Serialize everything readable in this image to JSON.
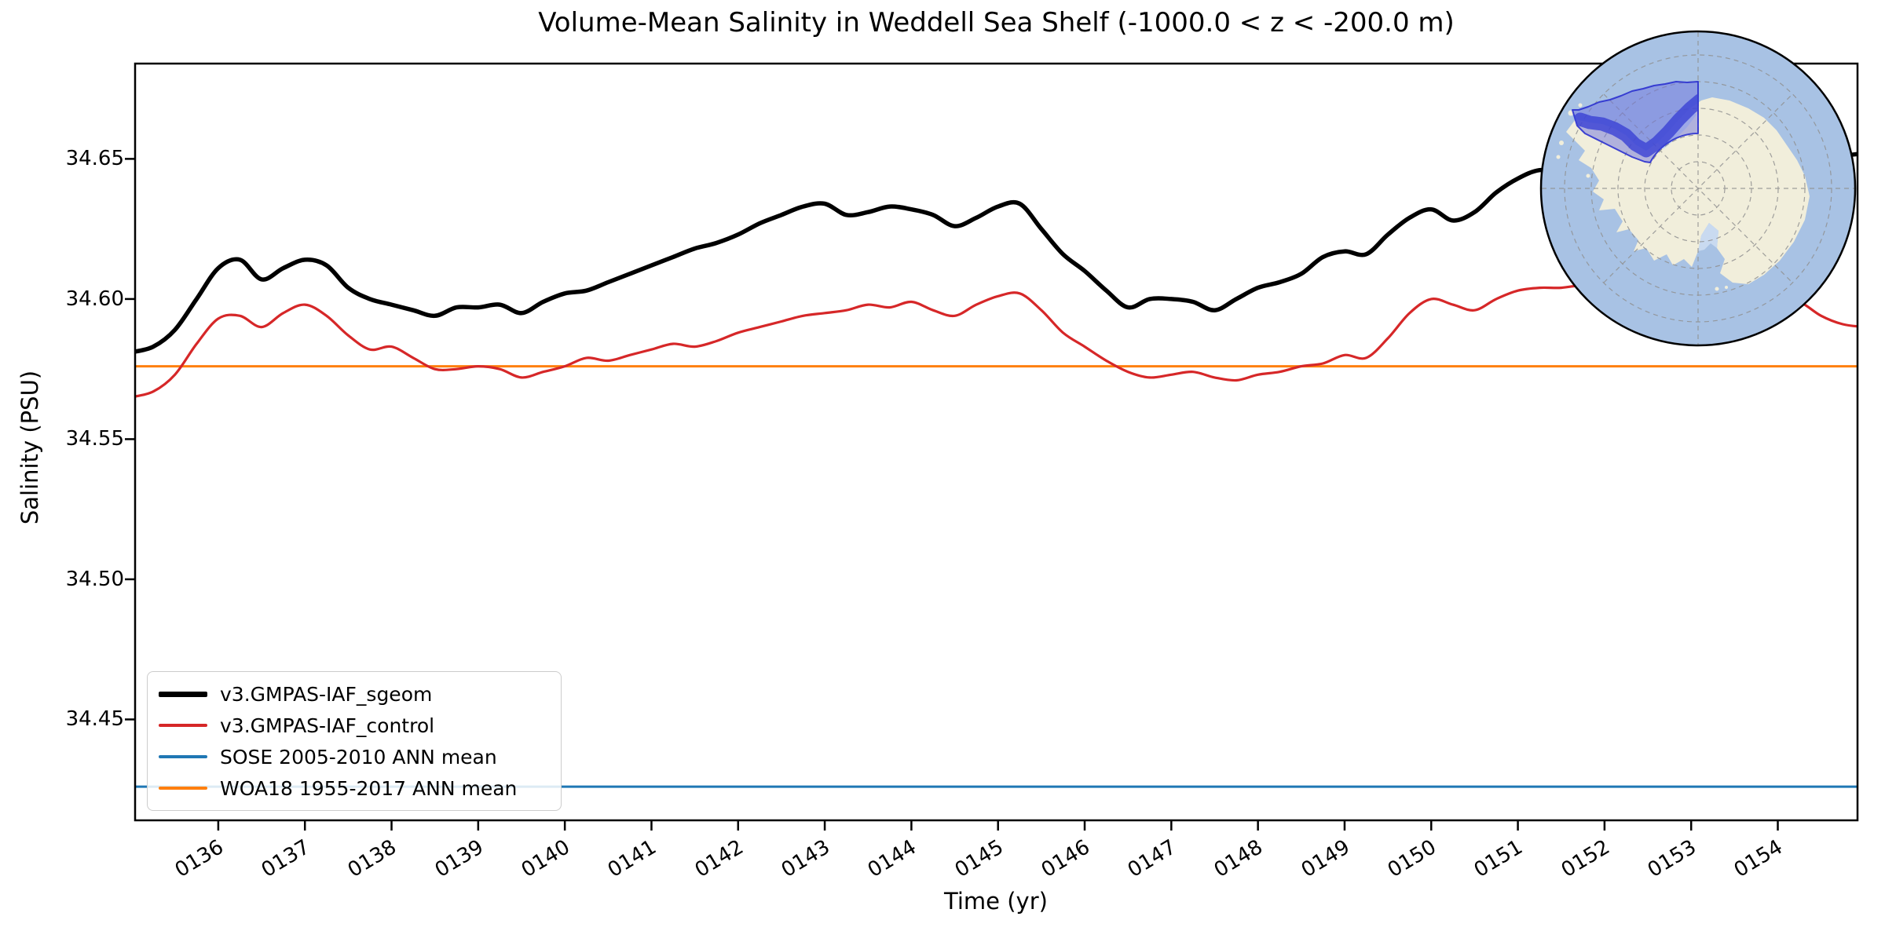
{
  "page": {
    "background": "#ffffff"
  },
  "chart_data": {
    "type": "line",
    "title": "Volume-Mean Salinity in Weddell Sea Shelf (-1000.0 < z < -200.0 m)",
    "xlabel": "Time (yr)",
    "ylabel": "Salinity (PSU)",
    "xlim": [
      135.04,
      154.92
    ],
    "ylim": [
      34.414,
      34.684
    ],
    "grid": false,
    "legend_position": "lower left",
    "xticks": [
      {
        "value": 136,
        "label": "0136"
      },
      {
        "value": 137,
        "label": "0137"
      },
      {
        "value": 138,
        "label": "0138"
      },
      {
        "value": 139,
        "label": "0139"
      },
      {
        "value": 140,
        "label": "0140"
      },
      {
        "value": 141,
        "label": "0141"
      },
      {
        "value": 142,
        "label": "0142"
      },
      {
        "value": 143,
        "label": "0143"
      },
      {
        "value": 144,
        "label": "0144"
      },
      {
        "value": 145,
        "label": "0145"
      },
      {
        "value": 146,
        "label": "0146"
      },
      {
        "value": 147,
        "label": "0147"
      },
      {
        "value": 148,
        "label": "0148"
      },
      {
        "value": 149,
        "label": "0149"
      },
      {
        "value": 150,
        "label": "0150"
      },
      {
        "value": 151,
        "label": "0151"
      },
      {
        "value": 152,
        "label": "0152"
      },
      {
        "value": 153,
        "label": "0153"
      },
      {
        "value": 154,
        "label": "0154"
      }
    ],
    "yticks": [
      {
        "value": 34.45,
        "label": "34.45"
      },
      {
        "value": 34.5,
        "label": "34.50"
      },
      {
        "value": 34.55,
        "label": "34.55"
      },
      {
        "value": 34.6,
        "label": "34.60"
      },
      {
        "value": 34.65,
        "label": "34.65"
      }
    ],
    "x_start": 135.0,
    "x_step": 0.25,
    "series": [
      {
        "name": "v3.GMPAS-IAF_sgeom",
        "color": "#000000",
        "line_width": 5.5,
        "values": [
          34.581,
          34.583,
          34.589,
          34.6,
          34.611,
          34.614,
          34.607,
          34.611,
          34.614,
          34.612,
          34.604,
          34.6,
          34.598,
          34.596,
          34.594,
          34.597,
          34.597,
          34.598,
          34.595,
          34.599,
          34.602,
          34.603,
          34.606,
          34.609,
          34.612,
          34.615,
          34.618,
          34.62,
          34.623,
          34.627,
          34.63,
          34.633,
          34.634,
          34.63,
          34.631,
          34.633,
          34.632,
          34.63,
          34.626,
          34.629,
          34.633,
          34.634,
          34.625,
          34.616,
          34.61,
          34.603,
          34.597,
          34.6,
          34.6,
          34.599,
          34.596,
          34.6,
          34.604,
          34.606,
          34.609,
          34.615,
          34.617,
          34.616,
          34.623,
          34.629,
          34.632,
          34.628,
          34.631,
          34.638,
          34.643,
          34.646,
          34.645,
          34.648,
          34.65,
          34.651,
          34.652,
          34.652,
          34.651,
          34.65,
          34.65,
          34.649,
          34.649,
          34.648,
          34.649,
          34.651,
          34.652
        ]
      },
      {
        "name": "v3.GMPAS-IAF_control",
        "color": "#d62728",
        "line_width": 3.2,
        "values": [
          34.565,
          34.567,
          34.573,
          34.584,
          34.593,
          34.594,
          34.59,
          34.595,
          34.598,
          34.594,
          34.587,
          34.582,
          34.583,
          34.579,
          34.575,
          34.575,
          34.576,
          34.575,
          34.572,
          34.574,
          34.576,
          34.579,
          34.578,
          34.58,
          34.582,
          34.584,
          34.583,
          34.585,
          34.588,
          34.59,
          34.592,
          34.594,
          34.595,
          34.596,
          34.598,
          34.597,
          34.599,
          34.596,
          34.594,
          34.598,
          34.601,
          34.602,
          34.596,
          34.588,
          34.583,
          34.578,
          34.574,
          34.572,
          34.573,
          34.574,
          34.572,
          34.571,
          34.573,
          34.574,
          34.576,
          34.577,
          34.58,
          34.579,
          34.586,
          34.595,
          34.6,
          34.598,
          34.596,
          34.6,
          34.603,
          34.604,
          34.604,
          34.605,
          34.605,
          34.604,
          34.604,
          34.603,
          34.603,
          34.602,
          34.602,
          34.601,
          34.6,
          34.599,
          34.594,
          34.591,
          34.59
        ]
      },
      {
        "name": "SOSE 2005-2010 ANN mean",
        "color": "#1f77b4",
        "line_width": 3,
        "constant": 34.426
      },
      {
        "name": "WOA18 1955-2017 ANN mean",
        "color": "#ff7f0e",
        "line_width": 3,
        "constant": 34.576
      }
    ]
  },
  "inset_map": {
    "description": "South polar stereographic map of Antarctica with the Weddell Sea shelf region highlighted",
    "ocean_color": "#a8c2e4",
    "land_color": "#f1eedb",
    "ice_shelf_color": "#c9daf0",
    "region_fill": "#6f74dd",
    "shelf_band_color": "#3a41d4",
    "region_outline_color": "#2b31cf"
  }
}
